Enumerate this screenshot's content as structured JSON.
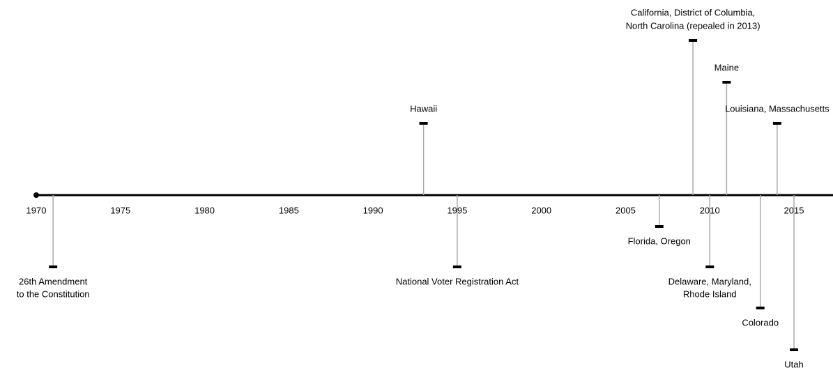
{
  "chart_data": {
    "type": "timeline",
    "x": [
      1971,
      1993,
      1995,
      2007,
      2009,
      2010,
      2011,
      2013,
      2014,
      2015
    ],
    "labels": [
      [
        "26th Amendment",
        "to the Constitution"
      ],
      [
        "Hawaii"
      ],
      [
        "National Voter Registration Act"
      ],
      [
        "Florida, Oregon"
      ],
      [
        "California, District of Columbia,",
        "North Carolina (repealed in 2013)"
      ],
      [
        "Delaware, Maryland,",
        "Rhode Island"
      ],
      [
        "Maine"
      ],
      [
        "Colorado"
      ],
      [
        "Louisiana, Massachusetts"
      ],
      [
        "Utah"
      ]
    ],
    "xlim": [
      1970,
      2017
    ],
    "xticks": [
      1970,
      1975,
      1980,
      1985,
      1990,
      1995,
      2000,
      2005,
      2010,
      2015
    ]
  }
}
